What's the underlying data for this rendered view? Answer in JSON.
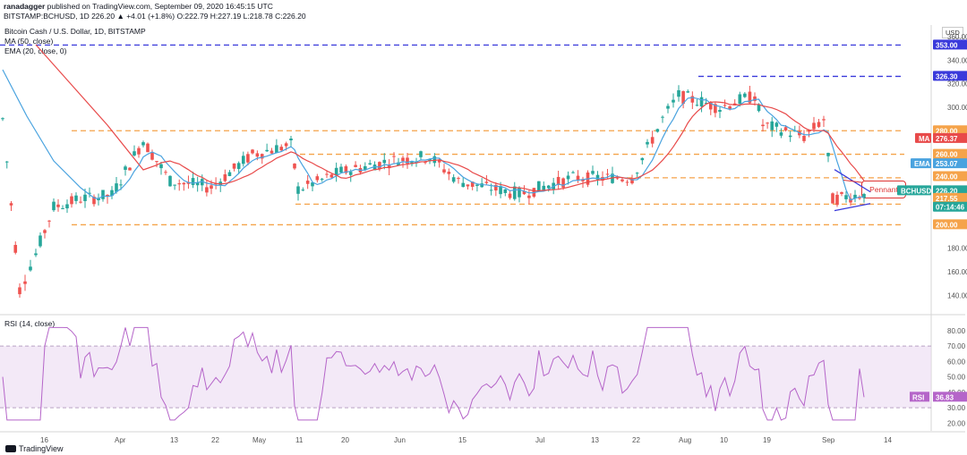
{
  "header": {
    "line1_user": "ranadagger",
    "line1_rest": "published on TradingView.com, September 09, 2020 16:45:15 UTC",
    "line2": "BITSTAMP:BCHUSD, 1D 226.20 ▲ +4.01 (+1.8%) O:222.79 H:227.19 L:218.78 C:226.20"
  },
  "labels": {
    "symbol": "Bitcoin Cash / U.S. Dollar, 1D, BITSTAMP",
    "ma": "MA (50, close)",
    "ema": "EMA (20, close, 0)",
    "rsi": "RSI (14, close)",
    "usd": "USD",
    "pennant": "Pennant",
    "brand": "TradingView"
  },
  "colors": {
    "up": "#26a69a",
    "down": "#ef5350",
    "ma": "#e84a4a",
    "ema": "#4aa3df",
    "rsi": "#b565c9",
    "level": "#f5a34a",
    "resistance": "#3a3adb"
  },
  "chart_data": [
    {
      "type": "candlestick",
      "ylim": [
        125,
        370
      ],
      "yticks": [
        140,
        160,
        180,
        200,
        220,
        240,
        260,
        280,
        300,
        320,
        340,
        360
      ],
      "xticks": [
        "16",
        "Apr",
        "13",
        "22",
        "May",
        "11",
        "20",
        "Jun",
        "15",
        "Jul",
        "13",
        "22",
        "Aug",
        "10",
        "19",
        "Sep",
        "14"
      ],
      "ohlc_close_approx": [
        {
          "date": "Mar 09",
          "close": 290
        },
        {
          "date": "Mar 12",
          "close": 145
        },
        {
          "date": "Mar 15",
          "close": 175
        },
        {
          "date": "Mar 18",
          "close": 215
        },
        {
          "date": "Mar 24",
          "close": 222
        },
        {
          "date": "Apr 01",
          "close": 225
        },
        {
          "date": "Apr 07",
          "close": 272
        },
        {
          "date": "Apr 13",
          "close": 237
        },
        {
          "date": "Apr 22",
          "close": 232
        },
        {
          "date": "May 01",
          "close": 260
        },
        {
          "date": "May 08",
          "close": 268
        },
        {
          "date": "May 11",
          "close": 230
        },
        {
          "date": "May 20",
          "close": 245
        },
        {
          "date": "Jun 01",
          "close": 255
        },
        {
          "date": "Jun 10",
          "close": 258
        },
        {
          "date": "Jun 15",
          "close": 237
        },
        {
          "date": "Jun 30",
          "close": 226
        },
        {
          "date": "Jul 10",
          "close": 240
        },
        {
          "date": "Jul 22",
          "close": 240
        },
        {
          "date": "Jul 28",
          "close": 290
        },
        {
          "date": "Aug 01",
          "close": 310
        },
        {
          "date": "Aug 10",
          "close": 300
        },
        {
          "date": "Aug 17",
          "close": 310
        },
        {
          "date": "Aug 19",
          "close": 285
        },
        {
          "date": "Aug 28",
          "close": 275
        },
        {
          "date": "Sep 02",
          "close": 290
        },
        {
          "date": "Sep 04",
          "close": 222
        },
        {
          "date": "Sep 09",
          "close": 226.2
        }
      ],
      "price_tags": [
        {
          "value": "353.00",
          "color": "#3a3adb"
        },
        {
          "value": "326.30",
          "color": "#3a3adb"
        },
        {
          "value": "280.00",
          "color": "#f5a34a"
        },
        {
          "value": "276.37",
          "color": "#e84a4a",
          "label": "MA"
        },
        {
          "value": "260.00",
          "color": "#f5a34a"
        },
        {
          "value": "253.07",
          "color": "#4aa3df",
          "label": "EMA"
        },
        {
          "value": "240.00",
          "color": "#f5a34a"
        },
        {
          "value": "226.20",
          "color": "#26a69a",
          "label": "BCHUSD"
        },
        {
          "value": "217.55",
          "color": "#f5a34a"
        },
        {
          "value": "07:14:46",
          "color": "#26a69a"
        },
        {
          "value": "200.00",
          "color": "#f5a34a"
        }
      ],
      "levels": [
        {
          "value": 353,
          "style": "dashed",
          "color": "#3a3adb"
        },
        {
          "value": 326.3,
          "style": "dashed",
          "color": "#3a3adb"
        },
        {
          "value": 280,
          "style": "dashed",
          "color": "#f5a34a"
        },
        {
          "value": 260,
          "style": "dashed",
          "color": "#f5a34a"
        },
        {
          "value": 240,
          "style": "dashed",
          "color": "#f5a34a"
        },
        {
          "value": 217.55,
          "style": "dashed",
          "color": "#f5a34a"
        },
        {
          "value": 200,
          "style": "dashed",
          "color": "#f5a34a"
        }
      ]
    },
    {
      "type": "line",
      "name": "RSI",
      "ylim": [
        15,
        88
      ],
      "yticks": [
        "80.00",
        "70.00",
        "60.00",
        "50.00",
        "40.00",
        "30.00",
        "20.00"
      ],
      "band": [
        30,
        70
      ],
      "current": "36.83",
      "current_label": "RSI"
    }
  ]
}
